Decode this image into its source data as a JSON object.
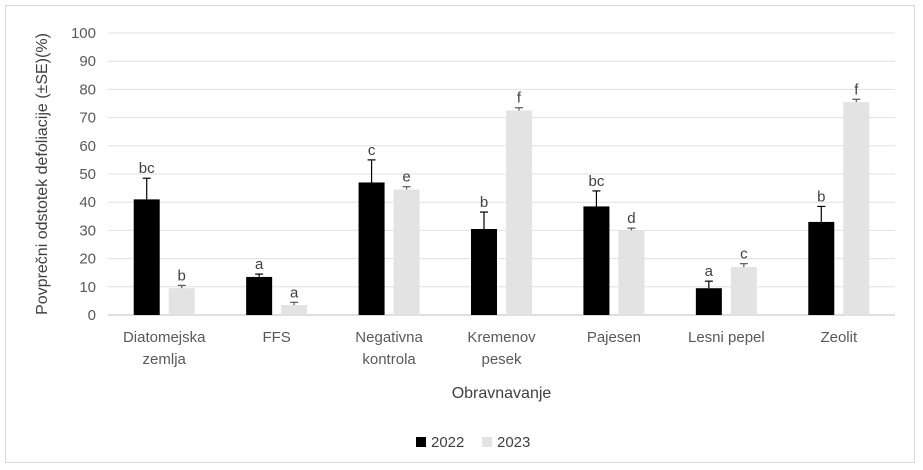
{
  "chart_data": {
    "type": "bar",
    "categories": [
      [
        "Diatomejska",
        "zemlja"
      ],
      [
        "FFS"
      ],
      [
        "Negativna",
        "kontrola"
      ],
      [
        "Kremenov",
        "pesek"
      ],
      [
        "Pajesen"
      ],
      [
        "Lesni pepel"
      ],
      [
        "Zeolit"
      ]
    ],
    "series": [
      {
        "name": "2022",
        "color": "#000000",
        "values": [
          41,
          13.5,
          47,
          30.5,
          38.5,
          9.5,
          33
        ],
        "errors": [
          7.5,
          1,
          8,
          6,
          5.5,
          2.5,
          5.5
        ],
        "labels": [
          "bc",
          "a",
          "c",
          "b",
          "bc",
          "a",
          "b"
        ]
      },
      {
        "name": "2023",
        "color": "#e3e3e3",
        "values": [
          9.5,
          3.5,
          44.5,
          72.5,
          30,
          17,
          75.5
        ],
        "errors": [
          1,
          1,
          1,
          1,
          0.8,
          1.2,
          1
        ],
        "labels": [
          "b",
          "a",
          "e",
          "f",
          "d",
          "c",
          "f"
        ]
      }
    ],
    "ylim": [
      0,
      100
    ],
    "yticks": [
      0,
      10,
      20,
      30,
      40,
      50,
      60,
      70,
      80,
      90,
      100
    ],
    "ylabel": "Povprečni odstotek defoliacije (±SE)(%)",
    "xlabel": "Obravnavanje",
    "grid": true,
    "legend_position": "bottom"
  }
}
